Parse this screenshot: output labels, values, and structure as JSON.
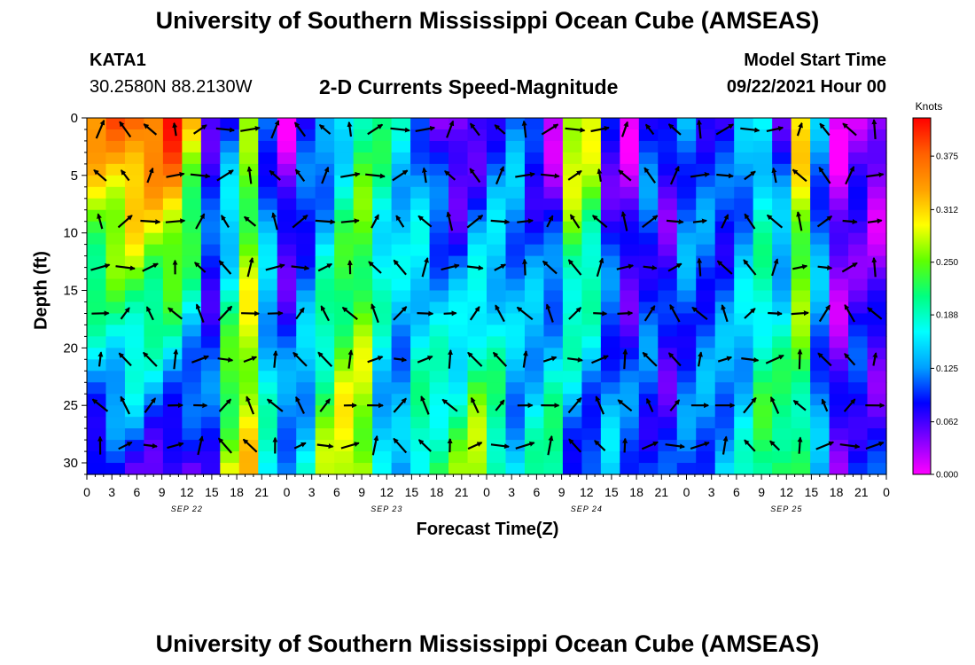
{
  "title_top": "University of Southern Mississippi Ocean Cube (AMSEAS)",
  "title_bottom": "University of Southern Mississippi Ocean Cube (AMSEAS)",
  "station": {
    "id": "KATA1",
    "coords": "30.2580N  88.2130W"
  },
  "model": {
    "label": "Model Start Time",
    "start": "09/22/2021 Hour 00"
  },
  "chart_data": {
    "type": "heatmap",
    "title": "2-D Currents Speed-Magnitude",
    "xlabel": "Forecast Time(Z)",
    "ylabel": "Depth (ft)",
    "x_ticks": [
      "0",
      "3",
      "6",
      "9",
      "12",
      "15",
      "18",
      "21",
      "0",
      "3",
      "6",
      "9",
      "12",
      "15",
      "18",
      "21",
      "0",
      "3",
      "6",
      "9",
      "12",
      "15",
      "18",
      "21",
      "0",
      "3",
      "6",
      "9",
      "12",
      "15",
      "18",
      "21",
      "0"
    ],
    "date_labels": [
      "SEP 22",
      "SEP 23",
      "SEP 24",
      "SEP 25"
    ],
    "y_ticks": [
      0,
      5,
      10,
      15,
      20,
      25,
      30
    ],
    "ylim": [
      0,
      31
    ],
    "xlim_hours": [
      0,
      96
    ],
    "colorbar": {
      "unit": "Knots",
      "ticks": [
        "0.375",
        "0.312",
        "0.250",
        "0.188",
        "0.125",
        "0.062",
        "0.000"
      ],
      "range": [
        0,
        0.42
      ],
      "colors": [
        "#ff00ff",
        "#8000ff",
        "#0000ff",
        "#00a0ff",
        "#00ffff",
        "#00ff80",
        "#60ff00",
        "#ffff00",
        "#ffa000",
        "#ff6000",
        "#ff0000"
      ]
    },
    "column_speeds_surface": [
      0.34,
      0.36,
      0.38,
      0.38,
      0.4,
      0.3,
      0.08,
      0.1,
      0.24,
      0.1,
      0.02,
      0.08,
      0.1,
      0.16,
      0.22,
      0.2,
      0.16,
      0.12,
      0.06,
      0.02,
      0.05,
      0.1,
      0.12,
      0.07,
      0.02,
      0.3,
      0.28,
      0.06,
      0.02,
      0.1,
      0.06,
      0.12,
      0.1,
      0.08,
      0.12,
      0.16,
      0.08,
      0.3,
      0.12,
      0.02,
      0.04,
      0.02
    ],
    "column_speeds_bottom": [
      0.06,
      0.07,
      0.08,
      0.06,
      0.04,
      0.05,
      0.1,
      0.28,
      0.3,
      0.18,
      0.14,
      0.16,
      0.26,
      0.3,
      0.28,
      0.14,
      0.12,
      0.2,
      0.22,
      0.24,
      0.28,
      0.22,
      0.14,
      0.18,
      0.22,
      0.1,
      0.08,
      0.14,
      0.12,
      0.1,
      0.08,
      0.1,
      0.12,
      0.14,
      0.16,
      0.22,
      0.24,
      0.2,
      0.12,
      0.06,
      0.1,
      0.08
    ]
  }
}
